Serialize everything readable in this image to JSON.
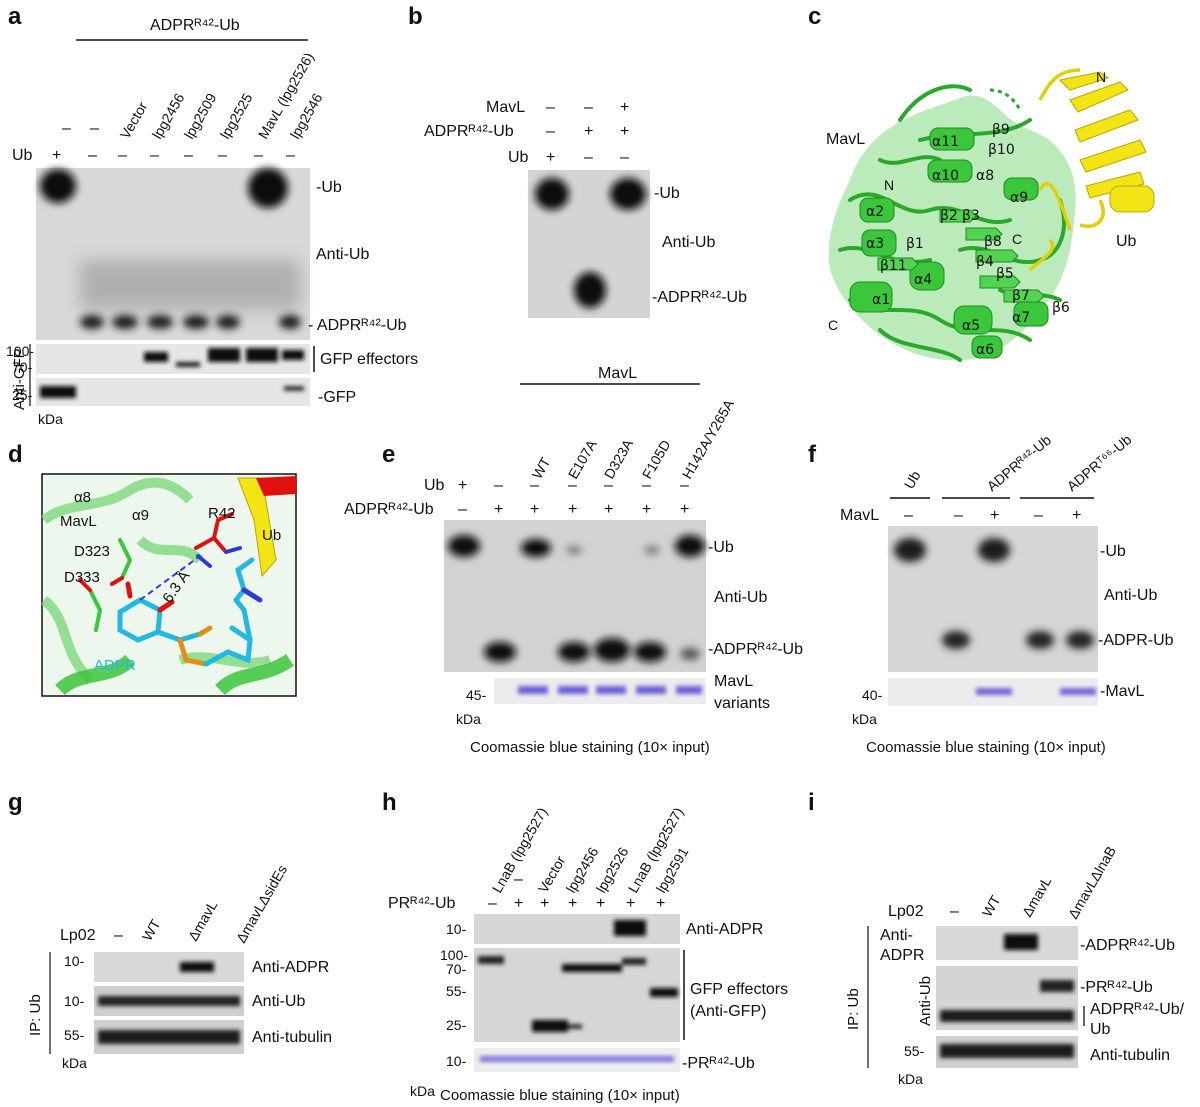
{
  "panel_letters": [
    "a",
    "b",
    "c",
    "d",
    "e",
    "f",
    "g",
    "h",
    "i"
  ],
  "a": {
    "header": "ADPRᴿ⁴²-Ub",
    "ub_label": "Ub",
    "ub_row": [
      "+",
      "–",
      "–",
      "–",
      "–",
      "–",
      "–",
      "–",
      "–"
    ],
    "dash_row": [
      "–",
      "–"
    ],
    "lanes": [
      "Vector",
      "lpg2456",
      "lpg2509",
      "lpg2525",
      "MavL (lpg2526)",
      "lpg2546"
    ],
    "blot_right": [
      "-Ub",
      "Anti-Ub",
      "- ADPRᴿ⁴²-Ub"
    ],
    "gfp_left": "Anti-GFP",
    "gfp_ticks": [
      "100-",
      "70-",
      "25-"
    ],
    "kda": "kDa",
    "gfp_right": [
      "GFP effectors",
      "-GFP"
    ]
  },
  "b": {
    "rows": [
      {
        "label": "MavL",
        "values": [
          "–",
          "–",
          "+"
        ]
      },
      {
        "label": "ADPRᴿ⁴²-Ub",
        "values": [
          "–",
          "+",
          "+"
        ]
      },
      {
        "label": "Ub",
        "values": [
          "+",
          "–",
          "–"
        ]
      }
    ],
    "right": [
      "-Ub",
      "Anti-Ub",
      "-ADPRᴿ⁴²-Ub"
    ]
  },
  "c": {
    "labels": [
      "MavL",
      "N",
      "Ub",
      "N",
      "C",
      "C"
    ],
    "elements": [
      "α11",
      "β9",
      "β10",
      "α10",
      "α8",
      "α9",
      "α2",
      "β2",
      "β3",
      "α3",
      "β1",
      "β8",
      "β11",
      "α4",
      "β4",
      "β5",
      "α1",
      "β7",
      "α5",
      "α7",
      "β6",
      "α6"
    ]
  },
  "d": {
    "labels": [
      "α8",
      "MavL",
      "α9",
      "R42",
      "D323",
      "D333",
      "6.3 Å",
      "Ub",
      "ADPR"
    ]
  },
  "e": {
    "header": "MavL",
    "lanes": [
      "WT",
      "E107A",
      "D323A",
      "F105D",
      "H142A/Y265A"
    ],
    "ub_row": {
      "label": "Ub",
      "values": [
        "+",
        "–",
        "–",
        "–",
        "–",
        "–",
        "–"
      ]
    },
    "adpr_row": {
      "label": "ADPRᴿ⁴²-Ub",
      "values": [
        "–",
        "+",
        "+",
        "+",
        "+",
        "+",
        "+"
      ]
    },
    "right": [
      "-Ub",
      "Anti-Ub",
      "-ADPRᴿ⁴²-Ub",
      "MavL",
      "variants"
    ],
    "tick": "45-",
    "kda": "kDa",
    "caption": "Coomassie blue staining (10× input)"
  },
  "f": {
    "groups": [
      "Ub",
      "ADPRᴿ⁴²-Ub",
      "ADPRᵀ⁶⁶-Ub"
    ],
    "mavl_row": {
      "label": "MavL",
      "values": [
        "–",
        "–",
        "+",
        "–",
        "+"
      ]
    },
    "right": [
      "-Ub",
      "Anti-Ub",
      "-ADPR-Ub",
      "-MavL"
    ],
    "tick": "40-",
    "kda": "kDa",
    "caption": "Coomassie blue staining (10× input)"
  },
  "g": {
    "row_label": "Lp02",
    "lanes": [
      "–",
      "WT",
      "ΔmavL",
      "ΔmavLΔsidEs"
    ],
    "ip": "IP: Ub",
    "ticks": [
      "10-",
      "10-",
      "55-"
    ],
    "kda": "kDa",
    "right": [
      "Anti-ADPR",
      "Anti-Ub",
      "Anti-tubulin"
    ]
  },
  "h": {
    "lanes": [
      "LnaB (lpg2527)",
      "–",
      "Vector",
      "lpg2456",
      "lpg2526",
      "LnaB (lpg2527)",
      "lpg2591"
    ],
    "pr_label": "PRᴿ⁴²-Ub",
    "pr_row": [
      "–",
      "+",
      "+",
      "+",
      "+",
      "+",
      "+"
    ],
    "ticks": [
      "10-",
      "100-",
      "70-",
      "55-",
      "25-",
      "10-"
    ],
    "kda": "kDa",
    "right": [
      "Anti-ADPR",
      "GFP effectors",
      "(Anti-GFP)",
      "-PRᴿ⁴²-Ub"
    ],
    "caption": "Coomassie blue staining (10× input)"
  },
  "i": {
    "row_label": "Lp02",
    "lanes": [
      "–",
      "WT",
      "ΔmavL",
      "ΔmavLΔlnaB"
    ],
    "ip": "IP: Ub",
    "left": [
      "Anti-",
      "ADPR",
      "Anti-Ub"
    ],
    "ticks": [
      "55-"
    ],
    "kda": "kDa",
    "right": [
      "-ADPRᴿ⁴²-Ub",
      "-PRᴿ⁴²-Ub",
      "ADPRᴿ⁴²-Ub/",
      "Ub",
      "Anti-tubulin"
    ]
  },
  "colors": {
    "mavl": "#3cc63c",
    "ub": "#f2e415",
    "adpr": "#22b8e0",
    "arg": "#e01010",
    "coomassie": "#5a4fd6"
  }
}
